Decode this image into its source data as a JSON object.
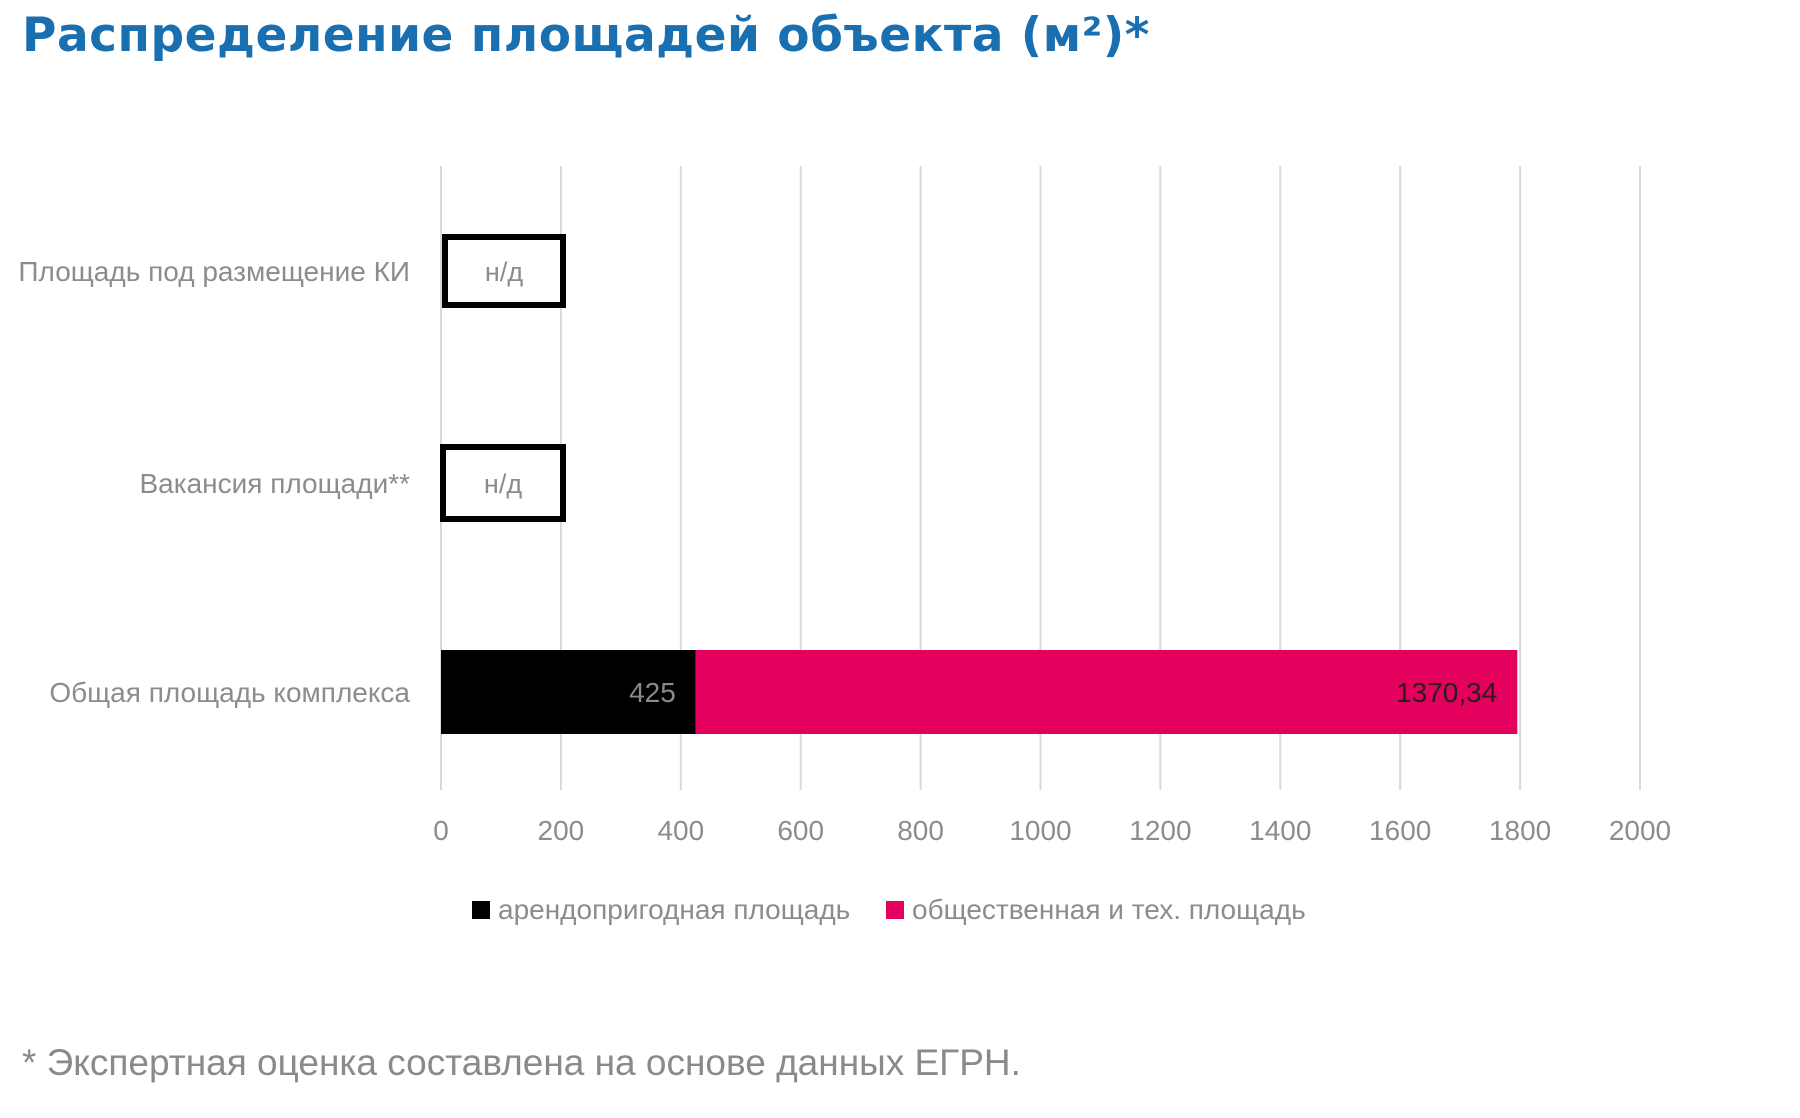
{
  "title": "Распределение площадей объекта (м²)*",
  "footnote": "* Экспертная оценка составлена на основе данных ЕГРН.",
  "colors": {
    "title": "#1a6fb0",
    "series_rentable": "#000000",
    "series_public": "#e4005d",
    "grid": "#d9d9d9",
    "axis_text": "#8c8c8c"
  },
  "chart_data": {
    "type": "bar",
    "orientation": "horizontal",
    "stacked": true,
    "title": "",
    "categories": [
      "Площадь под размещение КИ",
      "Вакансия площади**",
      "Общая площадь комплекса"
    ],
    "series": [
      {
        "name": "арендопригодная площадь",
        "color": "#000000",
        "values": [
          null,
          null,
          425
        ],
        "labels": [
          "",
          "",
          "425"
        ]
      },
      {
        "name": "общественная и тех. площадь",
        "color": "#e4005d",
        "values": [
          null,
          null,
          1370.34
        ],
        "labels": [
          "",
          "",
          "1370,34"
        ]
      }
    ],
    "placeholders": [
      {
        "category_index": 0,
        "label": "н/д"
      },
      {
        "category_index": 1,
        "label": "н/д"
      }
    ],
    "xlim": [
      0,
      2000
    ],
    "xticks": [
      "0",
      "200",
      "400",
      "600",
      "800",
      "1000",
      "1200",
      "1400",
      "1600",
      "1800",
      "2000"
    ],
    "grid": true,
    "legend_position": "bottom"
  }
}
